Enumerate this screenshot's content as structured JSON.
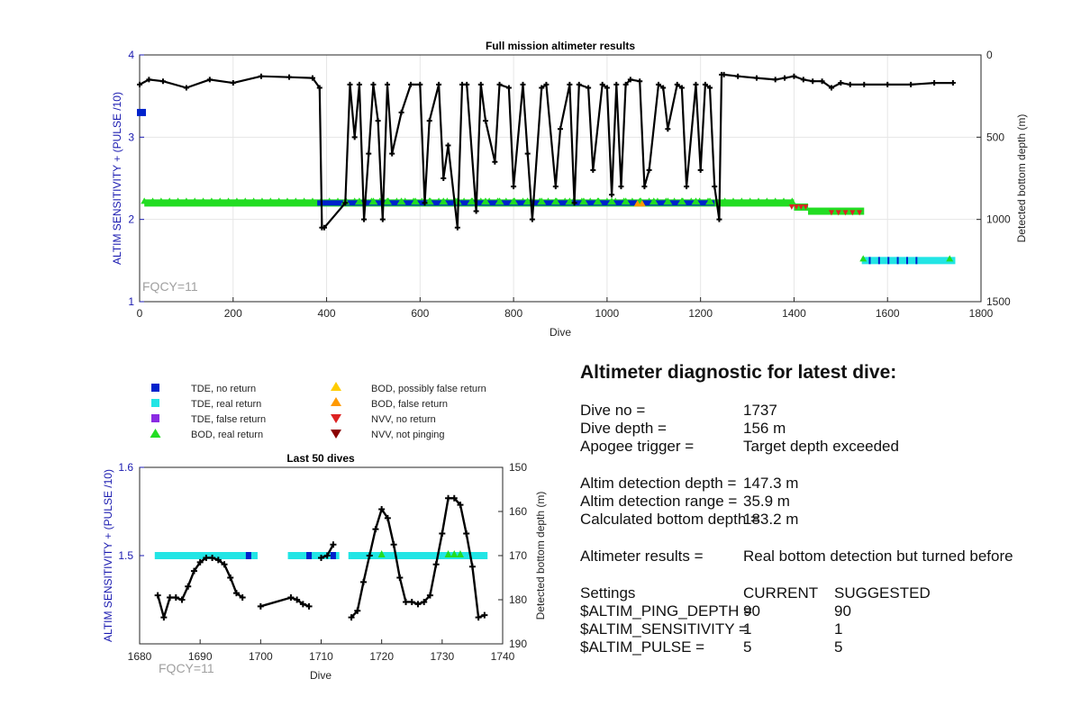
{
  "chart_data": [
    {
      "type": "line",
      "title": "Full mission altimeter results",
      "xlabel": "Dive",
      "ylabel": "ALTIM SENSITIVITY + (PULSE /10)",
      "y2label": "Detected bottom depth (m)",
      "xlim": [
        0,
        1800
      ],
      "ylim": [
        1,
        4
      ],
      "y2lim": [
        1500,
        0
      ],
      "xticks": [
        0,
        200,
        400,
        600,
        800,
        1000,
        1200,
        1400,
        1600,
        1800
      ],
      "yticks": [
        1,
        2,
        3,
        4
      ],
      "y2ticks": [
        0,
        500,
        1000,
        1500
      ],
      "grid": true,
      "annotation": "FQCY=11",
      "series": [
        {
          "name": "Detected bottom depth",
          "axis": "right",
          "color": "#000000",
          "x": [
            0,
            20,
            50,
            100,
            150,
            200,
            260,
            320,
            370,
            385,
            390,
            395,
            440,
            450,
            460,
            470,
            480,
            490,
            500,
            510,
            520,
            530,
            540,
            560,
            580,
            600,
            610,
            620,
            640,
            650,
            660,
            680,
            690,
            700,
            720,
            730,
            740,
            760,
            770,
            790,
            800,
            820,
            830,
            840,
            860,
            870,
            890,
            900,
            920,
            930,
            940,
            960,
            970,
            990,
            1000,
            1010,
            1020,
            1030,
            1040,
            1050,
            1070,
            1080,
            1090,
            1110,
            1120,
            1130,
            1150,
            1160,
            1170,
            1190,
            1200,
            1210,
            1220,
            1230,
            1240,
            1245,
            1250,
            1280,
            1320,
            1360,
            1380,
            1400,
            1420,
            1440,
            1460,
            1480,
            1500,
            1520,
            1550,
            1600,
            1650,
            1700,
            1740
          ],
          "y": [
            180,
            150,
            160,
            200,
            150,
            170,
            130,
            135,
            140,
            200,
            1050,
            1050,
            900,
            180,
            500,
            180,
            1000,
            600,
            180,
            400,
            1000,
            180,
            600,
            350,
            180,
            180,
            900,
            400,
            180,
            750,
            550,
            1050,
            180,
            180,
            950,
            180,
            400,
            650,
            180,
            200,
            800,
            180,
            600,
            1000,
            200,
            180,
            800,
            450,
            180,
            900,
            180,
            200,
            700,
            180,
            200,
            850,
            180,
            800,
            180,
            150,
            160,
            800,
            700,
            180,
            200,
            450,
            180,
            200,
            800,
            180,
            700,
            180,
            200,
            800,
            1000,
            120,
            120,
            130,
            140,
            150,
            140,
            130,
            150,
            160,
            160,
            200,
            170,
            180,
            180,
            180,
            180,
            170,
            170
          ]
        },
        {
          "name": "BOD, real return",
          "axis": "left",
          "color": "#22dd22",
          "y": 2.2,
          "x_range": [
            10,
            1550
          ]
        },
        {
          "name": "TDE, no return",
          "axis": "left",
          "color": "#0022cc",
          "y": 2.2,
          "x_range": [
            380,
            1230
          ]
        },
        {
          "name": "TDE, real return",
          "axis": "left",
          "color": "#22e5e5",
          "y": 1.5,
          "x_range": [
            1545,
            1745
          ]
        },
        {
          "name": "NVV, no return",
          "axis": "left",
          "color": "#dd2222",
          "y": 2.1,
          "x_range": [
            1390,
            1545
          ]
        }
      ]
    },
    {
      "type": "line",
      "title": "Last 50 dives",
      "xlabel": "Dive",
      "ylabel": "ALTIM SENSITIVITY + (PULSE /10)",
      "y2label": "Detected bottom depth (m)",
      "xlim": [
        1680,
        1740
      ],
      "ylim": [
        1.4,
        1.6
      ],
      "y2lim": [
        190,
        150
      ],
      "xticks": [
        1680,
        1690,
        1700,
        1710,
        1720,
        1730,
        1740
      ],
      "yticks": [
        1.5,
        1.6
      ],
      "y2ticks": [
        150,
        160,
        170,
        180,
        190
      ],
      "grid": false,
      "annotation": "FQCY=11",
      "segments": [
        {
          "x": [
            1683,
            1684,
            1685,
            1686,
            1687,
            1688,
            1689,
            1690,
            1691,
            1692,
            1693,
            1694,
            1695,
            1696,
            1697
          ],
          "y": [
            179,
            184,
            179.5,
            179.5,
            180,
            177,
            173.5,
            171.5,
            170.5,
            170.5,
            171,
            172,
            175,
            178.5,
            179.5
          ]
        },
        {
          "x": [
            1700,
            1705,
            1706,
            1707,
            1708
          ],
          "y": [
            181.5,
            179.5,
            180,
            181,
            181.5
          ]
        },
        {
          "x": [
            1710,
            1711,
            1712
          ],
          "y": [
            170.5,
            170,
            167.5
          ]
        },
        {
          "x": [
            1715,
            1716,
            1717,
            1718,
            1719,
            1720,
            1721,
            1722,
            1723,
            1724,
            1725,
            1726,
            1727,
            1728,
            1729,
            1730,
            1731,
            1732,
            1733,
            1734,
            1735,
            1736,
            1737
          ],
          "y": [
            184,
            182.5,
            176,
            170,
            164,
            159.5,
            161.5,
            167.5,
            175,
            180.5,
            180.5,
            181,
            180.5,
            179,
            172,
            165,
            157,
            157,
            158.5,
            165,
            172.5,
            184,
            183.5
          ]
        }
      ],
      "bars": [
        {
          "name": "TDE, real return",
          "color": "#22e5e5",
          "y": 1.5,
          "x_range": [
            1682.5,
            1699.5
          ]
        },
        {
          "name": "TDE, real return",
          "color": "#22e5e5",
          "y": 1.5,
          "x_range": [
            1704.5,
            1713
          ]
        },
        {
          "name": "TDE, real return",
          "color": "#22e5e5",
          "y": 1.5,
          "x_range": [
            1714.5,
            1737.5
          ]
        },
        {
          "name": "TDE, no return",
          "color": "#0022cc",
          "y": 1.5,
          "x": [
            1698,
            1708,
            1712
          ]
        },
        {
          "name": "BOD, real return",
          "color": "#22dd22",
          "y": 1.5,
          "x": [
            1720,
            1731,
            1732,
            1733
          ]
        }
      ]
    }
  ],
  "legend": {
    "colors": {
      "tde_no": "#0022cc",
      "tde_real": "#22e5e5",
      "tde_false": "#8a2be2",
      "bod_real": "#22dd22",
      "bod_possibly_false": "#ffcc00",
      "bod_false": "#ff9900",
      "nvv_no": "#dd2222",
      "nvv_not_pinging": "#8b0000"
    },
    "items": {
      "tde_no": "TDE, no return",
      "tde_real": "TDE, real return",
      "tde_false": "TDE, false return",
      "bod_real": "BOD, real return",
      "bod_possibly_false": "BOD, possibly false return",
      "bod_false": "BOD, false return",
      "nvv_no": "NVV, no return",
      "nvv_not_pinging": "NVV, not pinging"
    }
  },
  "diagnostic": {
    "title": "Altimeter diagnostic for latest dive:",
    "dive_no_label": "Dive no =",
    "dive_no_value": "1737",
    "dive_depth_label": "Dive depth =",
    "dive_depth_value": "156 m",
    "apogee_label": "Apogee trigger =",
    "apogee_value": "Target depth exceeded",
    "det_depth_label": "Altim detection depth =",
    "det_depth_value": "147.3 m",
    "det_range_label": "Altim detection range =",
    "det_range_value": "35.9 m",
    "calc_bottom_label": "Calculated bottom depth =",
    "calc_bottom_value": "183.2 m",
    "results_label": "Altimeter results =",
    "results_value": "Real bottom detection but turned before",
    "settings_label": "Settings",
    "current_label": "CURRENT",
    "suggested_label": "SUGGESTED",
    "ping_depth_label": "$ALTIM_PING_DEPTH =",
    "ping_depth_current": "90",
    "ping_depth_suggested": "90",
    "sensitivity_label": "$ALTIM_SENSITIVITY =",
    "sensitivity_current": "1",
    "sensitivity_suggested": "1",
    "pulse_label": "$ALTIM_PULSE =",
    "pulse_current": "5",
    "pulse_suggested": "5"
  }
}
